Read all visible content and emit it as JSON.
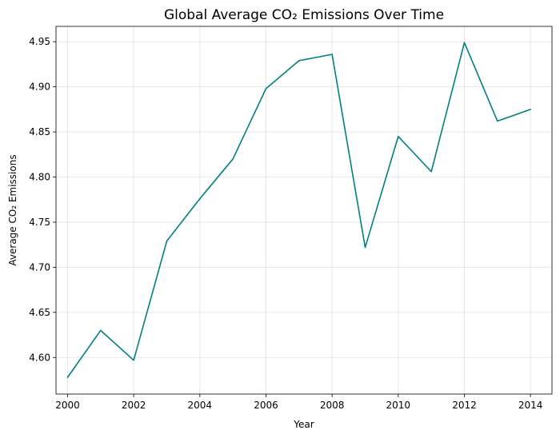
{
  "chart_data": {
    "type": "line",
    "title": "Global Average CO₂ Emissions Over Time",
    "xlabel": "Year",
    "ylabel": "Average CO₂ Emissions",
    "grid": true,
    "x": [
      2000,
      2001,
      2002,
      2003,
      2004,
      2005,
      2006,
      2007,
      2008,
      2009,
      2010,
      2011,
      2012,
      2013,
      2014
    ],
    "series": [
      {
        "name": "Average CO₂ Emissions",
        "color": "#008080",
        "values": [
          4.578,
          4.63,
          4.597,
          4.729,
          4.776,
          4.82,
          4.898,
          4.929,
          4.936,
          4.722,
          4.845,
          4.806,
          4.949,
          4.862,
          4.875
        ]
      }
    ],
    "xlim": [
      1999.65,
      2014.65
    ],
    "ylim": [
      4.5595,
      4.967
    ],
    "x_ticks": [
      2000,
      2002,
      2004,
      2006,
      2008,
      2010,
      2012,
      2014
    ],
    "x_tick_labels": [
      "2000",
      "2002",
      "2004",
      "2006",
      "2008",
      "2010",
      "2012",
      "2014"
    ],
    "y_ticks": [
      4.6,
      4.65,
      4.7,
      4.75,
      4.8,
      4.85,
      4.9,
      4.95
    ],
    "y_tick_labels": [
      "4.60",
      "4.65",
      "4.70",
      "4.75",
      "4.80",
      "4.85",
      "4.90",
      "4.95"
    ]
  }
}
